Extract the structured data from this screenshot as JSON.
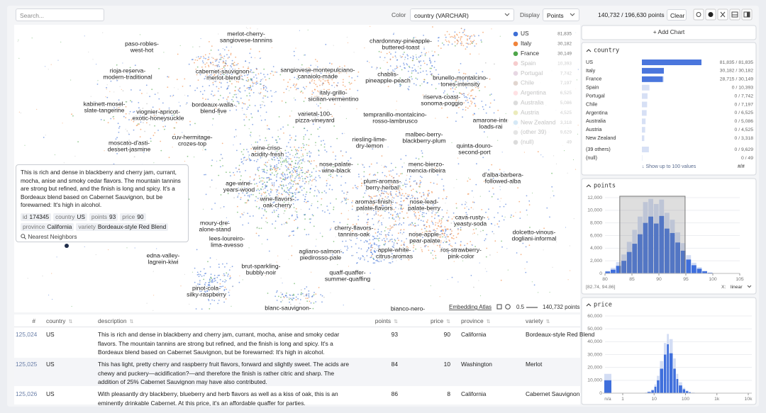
{
  "toolbar": {
    "search_placeholder": "Search...",
    "color_label": "Color",
    "color_value": "country (VARCHAR)",
    "display_label": "Display",
    "display_value": "Points",
    "count": "140,732 / 196,630 points",
    "clear": "Clear"
  },
  "embedding": {
    "labels": [
      [
        "paso-robles-",
        "west-hot"
      ],
      [
        "merlot-cherry-",
        "sangiovese-tannins"
      ],
      [
        "chardonnay-pineapple-",
        "buttered-toast"
      ],
      [
        "rioja-reserva-",
        "modern-traditional"
      ],
      [
        "cabernet-sauvignon-",
        "merlot-blend"
      ],
      [
        "sangiovese-montepulciano-",
        "canaiolo-made"
      ],
      [
        "chablis-",
        "pineapple-peach"
      ],
      [
        "brunello-montalcino-",
        "tones-intensity"
      ],
      [
        "kabinett-mosel-",
        "slate-tangerine"
      ],
      [
        "bordeaux-walla-",
        "blend-five"
      ],
      [
        "italy-grillo-",
        "sicilian-vermentino"
      ],
      [
        "riserva-coast-",
        "sonoma-poggio"
      ],
      [
        "viognier-apricot-",
        "exotic-honeysuckle"
      ],
      [
        "varietal-100-",
        "pizza-vineyard"
      ],
      [
        "tempranillo-montalcino-",
        "rosso-lambrusco"
      ],
      [
        "amarone-inte",
        "loads-rai"
      ],
      [
        "moscato-d'asti-",
        "dessert-jasmine"
      ],
      [
        "cuv-hermitage-",
        "crozes-top"
      ],
      [
        "malbec-berry-",
        "blackberry-plum"
      ],
      [
        "riesling-lime-",
        "dry-lemon"
      ],
      [
        "quinta-douro-",
        "second-port"
      ],
      [
        "wine-criso-",
        "acidity-fresh"
      ],
      [
        "nose-palate-",
        "wine-black"
      ],
      [
        "menc-bierzo-",
        "mencia-ribeira"
      ],
      [
        "d'alba-barbera-",
        "followed-alba"
      ],
      [
        "age-wine-",
        "years-wood"
      ],
      [
        "plum-aromas-",
        "berry-herbal"
      ],
      [
        "wine-flavors-",
        "oak-cherry"
      ],
      [
        "aromas-finish-",
        "palate-flavors"
      ],
      [
        "nose-lead-",
        "palate-berry"
      ],
      [
        "cava-rusty-",
        "yeasty-soda"
      ],
      [
        "moury-dre-",
        "alone-stand"
      ],
      [
        "cherry-flavors-",
        "tannins-oak"
      ],
      [
        "dolcetto-vinous-",
        "dogliani-informal"
      ],
      [
        "nose-apple-",
        "pear-palate"
      ],
      [
        "lees-loureiro-",
        "lima-avesso"
      ],
      [
        "agliano-salmon-",
        "piedirosso-pale"
      ],
      [
        "apple-white-",
        "citrus-aromas"
      ],
      [
        "ros-strawberry-",
        "pink-color"
      ],
      [
        "edna-valley-",
        "lagrein-kiwi"
      ],
      [
        "brut-sparkling-",
        "bubbly-noir"
      ],
      [
        "quaff-quaffer-",
        "summer-quaffing"
      ],
      [
        "pinot-cola-",
        "silky-raspberry"
      ],
      [
        "blanc-sauvignon-"
      ],
      [
        "bianco-nero-"
      ]
    ],
    "legend": [
      {
        "name": "US",
        "count": "81,835",
        "color": "#3e6fd6",
        "active": true
      },
      {
        "name": "Italy",
        "count": "30,182",
        "color": "#f0833a",
        "active": true
      },
      {
        "name": "France",
        "count": "30,149",
        "color": "#4ea64a",
        "active": true
      },
      {
        "name": "Spain",
        "count": "10,393",
        "color": "#e15759",
        "active": false
      },
      {
        "name": "Portugal",
        "count": "7,742",
        "color": "#b07aa1",
        "active": false
      },
      {
        "name": "Chile",
        "count": "7,197",
        "color": "#9c755f",
        "active": false
      },
      {
        "name": "Argentina",
        "count": "6,525",
        "color": "#ff9da7",
        "active": false
      },
      {
        "name": "Australia",
        "count": "5,086",
        "color": "#8c8c8c",
        "active": false
      },
      {
        "name": "Austria",
        "count": "4,525",
        "color": "#bcbd22",
        "active": false
      },
      {
        "name": "New Zealand",
        "count": "3,318",
        "color": "#76b7e2",
        "active": false
      },
      {
        "name": "(other 39)",
        "count": "9,629",
        "color": "#aaaaaa",
        "active": false
      },
      {
        "name": "(null)",
        "count": "49",
        "color": "#888888",
        "active": false
      }
    ],
    "footer": {
      "brand": "Embedding Atlas",
      "scale": "0.5",
      "points": "140,732 points"
    }
  },
  "tooltip": {
    "description": "This is rich and dense in blackberry and cherry jam, currant, mocha, anise and smoky cedar flavors. The mountain tannins are strong but refined, and the finish is long and spicy. It's a Bordeaux blend based on Cabernet Sauvignon, but be forewarned: It's high in alcohol.",
    "fields": [
      {
        "key": "id",
        "value": 174345
      },
      {
        "key": "country",
        "value": "US"
      },
      {
        "key": "points",
        "value": 93
      },
      {
        "key": "price",
        "value": 90
      },
      {
        "key": "province",
        "value": "California"
      },
      {
        "key": "variety",
        "value": "Bordeaux-style Red Blend"
      }
    ],
    "action": "Nearest Neighbors"
  },
  "table": {
    "columns": [
      "#",
      "country",
      "description",
      "points",
      "price",
      "province",
      "variety"
    ],
    "rows": [
      [
        "125,024",
        "US",
        "This is rich and dense in blackberry and cherry jam, currant, mocha, anise and smoky cedar flavors. The mountain tannins are strong but refined, and the finish is long and spicy. It's a Bordeaux blend based on Cabernet Sauvignon, but be forewarned: It's high in alcohol.",
        93,
        90,
        "California",
        "Bordeaux-style Red Blend"
      ],
      [
        "125,025",
        "US",
        "This has light, pretty cherry and raspberry fruit flavors, forward and slightly sweet. The acids are chewy and puckery—acidification?—and therefore the finish is rather citric and sharp. The addition of 25% Cabernet Sauvignon may have also contributed.",
        84,
        10,
        "Washington",
        "Merlot"
      ],
      [
        "125,026",
        "US",
        "With pleasantly dry blackberry, blueberry and herb flavors as well as a kiss of oak, this is an eminently drinkable Cabernet. At this price, it's an affordable quaffer for parties.",
        86,
        8,
        "California",
        "Cabernet Sauvignon"
      ]
    ]
  },
  "panel": {
    "add_chart": "+ Add Chart",
    "country": {
      "title": "country",
      "rows": [
        {
          "name": "US",
          "selected": 81835,
          "total": 81835,
          "label": "81,835 / 81,835"
        },
        {
          "name": "Italy",
          "selected": 30182,
          "total": 30182,
          "label": "30,182 / 30,182"
        },
        {
          "name": "France",
          "selected": 28715,
          "total": 30149,
          "label": "28,715 / 30,149"
        },
        {
          "name": "Spain",
          "selected": 0,
          "total": 10393,
          "label": "0 / 10,393"
        },
        {
          "name": "Portugal",
          "selected": 0,
          "total": 7742,
          "label": "0 / 7,742"
        },
        {
          "name": "Chile",
          "selected": 0,
          "total": 7197,
          "label": "0 / 7,197"
        },
        {
          "name": "Argentina",
          "selected": 0,
          "total": 6525,
          "label": "0 / 6,525"
        },
        {
          "name": "Australia",
          "selected": 0,
          "total": 5086,
          "label": "0 / 5,086"
        },
        {
          "name": "Austria",
          "selected": 0,
          "total": 4525,
          "label": "0 / 4,525"
        },
        {
          "name": "New Zealand",
          "selected": 0,
          "total": 3318,
          "label": "0 / 3,318"
        },
        {
          "name": "(39 others)",
          "selected": 0,
          "total": 9629,
          "label": "0 / 9,629"
        },
        {
          "name": "(null)",
          "selected": 0,
          "total": 49,
          "label": "0 / 49"
        }
      ],
      "more": "↓ Show up to 100 values",
      "mode": "#/#"
    },
    "points": {
      "title": "points",
      "bins": [
        80,
        81,
        82,
        83,
        84,
        85,
        86,
        87,
        88,
        89,
        90,
        91,
        92,
        93,
        94,
        95,
        96,
        97,
        98,
        99,
        100,
        101
      ],
      "total": [
        400,
        900,
        1800,
        3000,
        5000,
        6900,
        9000,
        11300,
        11800,
        11000,
        11700,
        9600,
        8500,
        6500,
        4800,
        2900,
        1700,
        1000,
        450,
        150,
        30
      ],
      "selected": [
        300,
        600,
        1200,
        2000,
        3400,
        4700,
        6200,
        8000,
        9000,
        7900,
        9100,
        7100,
        6400,
        4900,
        3600,
        2200,
        1300,
        750,
        330,
        110,
        20
      ],
      "xlim": [
        80,
        105
      ],
      "xticks": [
        80,
        85,
        90,
        95,
        100,
        105
      ],
      "ylim": [
        0,
        12000
      ],
      "yticks": [
        0,
        {
          "value": 2000,
          "label": "2,000"
        },
        {
          "value": 4000,
          "label": "4,000"
        },
        {
          "value": 6000,
          "label": "6,000"
        },
        {
          "value": 8000,
          "label": "8,000"
        },
        {
          "value": 10000,
          "label": "10,000"
        },
        {
          "value": 12000,
          "label": "12,000"
        }
      ],
      "brush": [
        82.74,
        94.86
      ],
      "brush_label": "[82.74, 94.86]",
      "scale_label": "X:",
      "scale": "linear"
    },
    "price": {
      "title": "price",
      "log": true,
      "na_label": "n/a",
      "na_total": 15000,
      "na_selected": 10000,
      "bins": [
        4,
        5,
        6,
        8,
        10,
        12,
        15,
        20,
        25,
        30,
        40,
        50,
        60,
        80,
        100,
        125,
        150,
        200,
        250,
        300,
        400
      ],
      "total": [
        150,
        450,
        1300,
        3000,
        6800,
        13500,
        25000,
        39000,
        46000,
        42000,
        27000,
        15000,
        8500,
        4200,
        2100,
        1000,
        450,
        220,
        90,
        30
      ],
      "selected": [
        100,
        300,
        900,
        2200,
        5000,
        10000,
        19000,
        30000,
        38000,
        31000,
        19000,
        11000,
        6000,
        3000,
        1500,
        700,
        300,
        150,
        60,
        20
      ],
      "xlim": [
        1,
        10000
      ],
      "xticks": [
        1,
        10,
        100,
        {
          "value": 1000,
          "label": "1k"
        },
        {
          "value": 10000,
          "label": "10k"
        }
      ],
      "ylim": [
        0,
        60000
      ],
      "yticks": [
        0,
        {
          "value": 10000,
          "label": "10,000"
        },
        {
          "value": 20000,
          "label": "20,000"
        },
        {
          "value": 30000,
          "label": "30,000"
        },
        {
          "value": 40000,
          "label": "40,000"
        },
        {
          "value": 50000,
          "label": "50,000"
        },
        {
          "value": 60000,
          "label": "60,000"
        }
      ]
    }
  }
}
